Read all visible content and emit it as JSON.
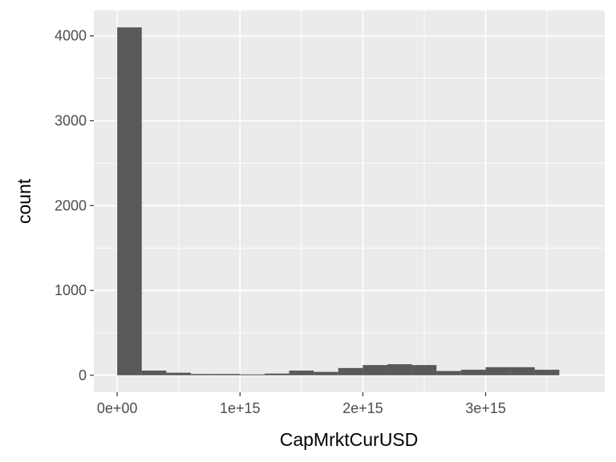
{
  "chart_data": {
    "type": "bar",
    "title": "",
    "xlabel": "CapMrktCurUSD",
    "ylabel": "count",
    "xlim": [
      -190000000000000.0,
      3970000000000000.0
    ],
    "ylim": [
      -200,
      4300
    ],
    "bin_width": 200000000000000.0,
    "bins": [
      {
        "x0": 0,
        "x1": 200000000000000.0,
        "count": 4100
      },
      {
        "x0": 200000000000000.0,
        "x1": 400000000000000.0,
        "count": 55
      },
      {
        "x0": 400000000000000.0,
        "x1": 600000000000000.0,
        "count": 30
      },
      {
        "x0": 600000000000000.0,
        "x1": 800000000000000.0,
        "count": 15
      },
      {
        "x0": 800000000000000.0,
        "x1": 1000000000000000.0,
        "count": 15
      },
      {
        "x0": 1000000000000000.0,
        "x1": 1200000000000000.0,
        "count": 10
      },
      {
        "x0": 1200000000000000.0,
        "x1": 1400000000000000.0,
        "count": 20
      },
      {
        "x0": 1400000000000000.0,
        "x1": 1600000000000000.0,
        "count": 55
      },
      {
        "x0": 1600000000000000.0,
        "x1": 1800000000000000.0,
        "count": 40
      },
      {
        "x0": 1800000000000000.0,
        "x1": 2000000000000000.0,
        "count": 85
      },
      {
        "x0": 2000000000000000.0,
        "x1": 2200000000000000.0,
        "count": 120
      },
      {
        "x0": 2200000000000000.0,
        "x1": 2400000000000000.0,
        "count": 130
      },
      {
        "x0": 2400000000000000.0,
        "x1": 2600000000000000.0,
        "count": 120
      },
      {
        "x0": 2600000000000000.0,
        "x1": 2800000000000000.0,
        "count": 50
      },
      {
        "x0": 2800000000000000.0,
        "x1": 3000000000000000.0,
        "count": 65
      },
      {
        "x0": 3000000000000000.0,
        "x1": 3200000000000000.0,
        "count": 95
      },
      {
        "x0": 3200000000000000.0,
        "x1": 3400000000000000.0,
        "count": 95
      },
      {
        "x0": 3400000000000000.0,
        "x1": 3600000000000000.0,
        "count": 65
      }
    ],
    "x_ticks": [
      {
        "value": 0,
        "label": "0e+00"
      },
      {
        "value": 1000000000000000.0,
        "label": "1e+15"
      },
      {
        "value": 2000000000000000.0,
        "label": "2e+15"
      },
      {
        "value": 3000000000000000.0,
        "label": "3e+15"
      }
    ],
    "y_ticks": [
      {
        "value": 0,
        "label": "0"
      },
      {
        "value": 1000,
        "label": "1000"
      },
      {
        "value": 2000,
        "label": "2000"
      },
      {
        "value": 3000,
        "label": "3000"
      },
      {
        "value": 4000,
        "label": "4000"
      }
    ],
    "grid": true,
    "legend": "none",
    "colors": {
      "panel": "#ebebeb",
      "grid_major": "#ffffff",
      "bar_fill": "#595959",
      "tick_text": "#4d4d4d",
      "tick_mark": "#333333"
    }
  }
}
